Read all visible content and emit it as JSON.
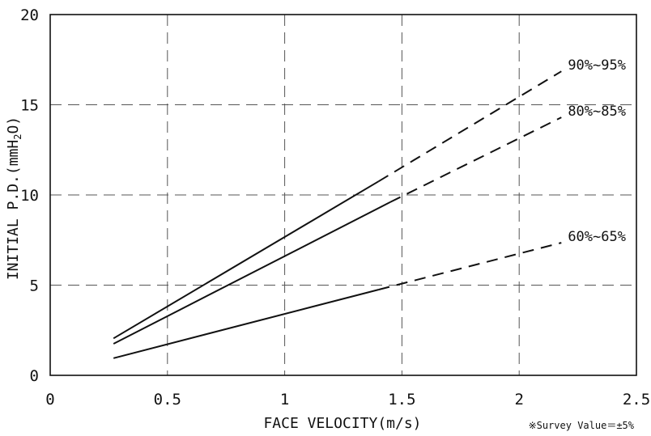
{
  "chart_data": {
    "type": "line",
    "xlabel": "FACE VELOCITY(m/s)",
    "ylabel_parts": {
      "main": "INITIAL P.D.(mmH",
      "sub": "2",
      "tail": "O)"
    },
    "note": "※Survey Value＝±5%",
    "xlim": [
      0,
      2.5
    ],
    "ylim": [
      0,
      20
    ],
    "x_ticks": [
      0,
      0.5,
      1,
      1.5,
      2,
      2.5
    ],
    "x_tick_labels": [
      "0",
      "0.5",
      "1",
      "1.5",
      "2",
      "2.5"
    ],
    "y_ticks": [
      0,
      5,
      10,
      15,
      20
    ],
    "y_tick_labels": [
      "0",
      "5",
      "10",
      "15",
      "20"
    ],
    "grid": true,
    "series": [
      {
        "name": "90%~95%",
        "solid": {
          "x": [
            0.27,
            1.4
          ],
          "y": [
            2.05,
            10.75
          ]
        },
        "dashed": {
          "x": [
            1.4,
            2.18
          ],
          "y": [
            10.75,
            16.85
          ]
        }
      },
      {
        "name": "80%~85%",
        "solid": {
          "x": [
            0.27,
            1.45
          ],
          "y": [
            1.75,
            9.6
          ]
        },
        "dashed": {
          "x": [
            1.45,
            2.18
          ],
          "y": [
            9.6,
            14.3
          ]
        }
      },
      {
        "name": "60%~65%",
        "solid": {
          "x": [
            0.27,
            1.4
          ],
          "y": [
            0.95,
            4.75
          ]
        },
        "dashed": {
          "x": [
            1.4,
            2.18
          ],
          "y": [
            4.75,
            7.35
          ]
        }
      }
    ]
  }
}
